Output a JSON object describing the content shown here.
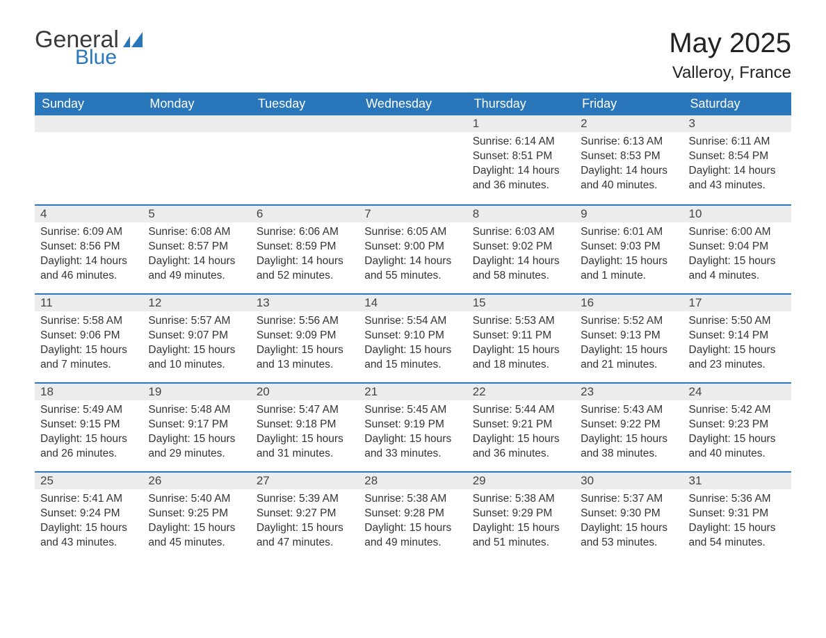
{
  "brand": {
    "part1": "General",
    "part2": "Blue"
  },
  "title": "May 2025",
  "location": "Valleroy, France",
  "colors": {
    "header_bg": "#2a76bb",
    "header_text": "#ffffff",
    "daynum_bg": "#ececec",
    "daynum_border": "#2a76bb",
    "body_text": "#333333",
    "page_bg": "#ffffff"
  },
  "type": "table",
  "columns": [
    "Sunday",
    "Monday",
    "Tuesday",
    "Wednesday",
    "Thursday",
    "Friday",
    "Saturday"
  ],
  "weeks": [
    [
      null,
      null,
      null,
      null,
      {
        "n": "1",
        "sr": "6:14 AM",
        "ss": "8:51 PM",
        "dl": "14 hours and 36 minutes."
      },
      {
        "n": "2",
        "sr": "6:13 AM",
        "ss": "8:53 PM",
        "dl": "14 hours and 40 minutes."
      },
      {
        "n": "3",
        "sr": "6:11 AM",
        "ss": "8:54 PM",
        "dl": "14 hours and 43 minutes."
      }
    ],
    [
      {
        "n": "4",
        "sr": "6:09 AM",
        "ss": "8:56 PM",
        "dl": "14 hours and 46 minutes."
      },
      {
        "n": "5",
        "sr": "6:08 AM",
        "ss": "8:57 PM",
        "dl": "14 hours and 49 minutes."
      },
      {
        "n": "6",
        "sr": "6:06 AM",
        "ss": "8:59 PM",
        "dl": "14 hours and 52 minutes."
      },
      {
        "n": "7",
        "sr": "6:05 AM",
        "ss": "9:00 PM",
        "dl": "14 hours and 55 minutes."
      },
      {
        "n": "8",
        "sr": "6:03 AM",
        "ss": "9:02 PM",
        "dl": "14 hours and 58 minutes."
      },
      {
        "n": "9",
        "sr": "6:01 AM",
        "ss": "9:03 PM",
        "dl": "15 hours and 1 minute."
      },
      {
        "n": "10",
        "sr": "6:00 AM",
        "ss": "9:04 PM",
        "dl": "15 hours and 4 minutes."
      }
    ],
    [
      {
        "n": "11",
        "sr": "5:58 AM",
        "ss": "9:06 PM",
        "dl": "15 hours and 7 minutes."
      },
      {
        "n": "12",
        "sr": "5:57 AM",
        "ss": "9:07 PM",
        "dl": "15 hours and 10 minutes."
      },
      {
        "n": "13",
        "sr": "5:56 AM",
        "ss": "9:09 PM",
        "dl": "15 hours and 13 minutes."
      },
      {
        "n": "14",
        "sr": "5:54 AM",
        "ss": "9:10 PM",
        "dl": "15 hours and 15 minutes."
      },
      {
        "n": "15",
        "sr": "5:53 AM",
        "ss": "9:11 PM",
        "dl": "15 hours and 18 minutes."
      },
      {
        "n": "16",
        "sr": "5:52 AM",
        "ss": "9:13 PM",
        "dl": "15 hours and 21 minutes."
      },
      {
        "n": "17",
        "sr": "5:50 AM",
        "ss": "9:14 PM",
        "dl": "15 hours and 23 minutes."
      }
    ],
    [
      {
        "n": "18",
        "sr": "5:49 AM",
        "ss": "9:15 PM",
        "dl": "15 hours and 26 minutes."
      },
      {
        "n": "19",
        "sr": "5:48 AM",
        "ss": "9:17 PM",
        "dl": "15 hours and 29 minutes."
      },
      {
        "n": "20",
        "sr": "5:47 AM",
        "ss": "9:18 PM",
        "dl": "15 hours and 31 minutes."
      },
      {
        "n": "21",
        "sr": "5:45 AM",
        "ss": "9:19 PM",
        "dl": "15 hours and 33 minutes."
      },
      {
        "n": "22",
        "sr": "5:44 AM",
        "ss": "9:21 PM",
        "dl": "15 hours and 36 minutes."
      },
      {
        "n": "23",
        "sr": "5:43 AM",
        "ss": "9:22 PM",
        "dl": "15 hours and 38 minutes."
      },
      {
        "n": "24",
        "sr": "5:42 AM",
        "ss": "9:23 PM",
        "dl": "15 hours and 40 minutes."
      }
    ],
    [
      {
        "n": "25",
        "sr": "5:41 AM",
        "ss": "9:24 PM",
        "dl": "15 hours and 43 minutes."
      },
      {
        "n": "26",
        "sr": "5:40 AM",
        "ss": "9:25 PM",
        "dl": "15 hours and 45 minutes."
      },
      {
        "n": "27",
        "sr": "5:39 AM",
        "ss": "9:27 PM",
        "dl": "15 hours and 47 minutes."
      },
      {
        "n": "28",
        "sr": "5:38 AM",
        "ss": "9:28 PM",
        "dl": "15 hours and 49 minutes."
      },
      {
        "n": "29",
        "sr": "5:38 AM",
        "ss": "9:29 PM",
        "dl": "15 hours and 51 minutes."
      },
      {
        "n": "30",
        "sr": "5:37 AM",
        "ss": "9:30 PM",
        "dl": "15 hours and 53 minutes."
      },
      {
        "n": "31",
        "sr": "5:36 AM",
        "ss": "9:31 PM",
        "dl": "15 hours and 54 minutes."
      }
    ]
  ],
  "labels": {
    "sunrise": "Sunrise: ",
    "sunset": "Sunset: ",
    "daylight": "Daylight: "
  }
}
